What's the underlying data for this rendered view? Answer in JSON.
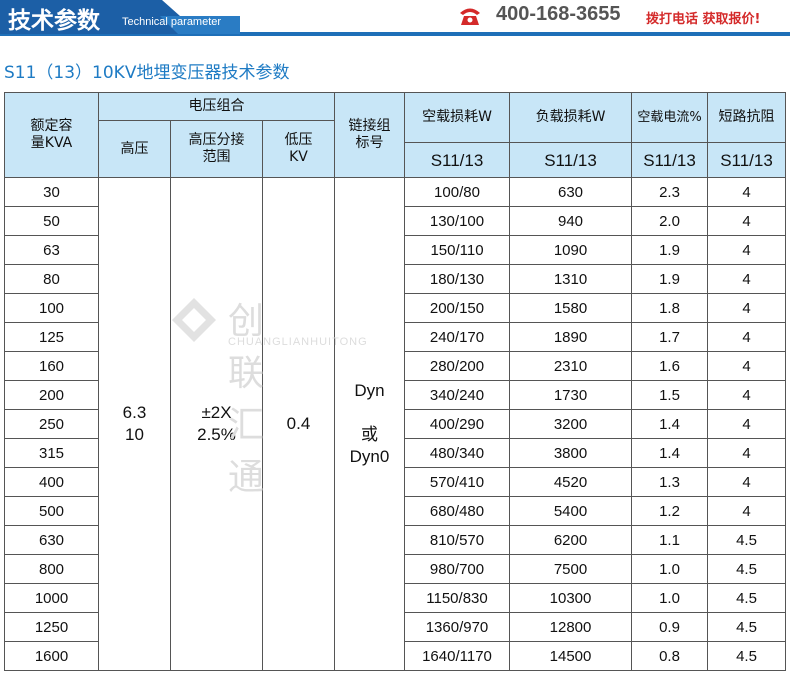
{
  "banner": {
    "title": "技术参数",
    "subtitle": "Technical parameter",
    "phone_icon": "phone-icon",
    "phone": "400-168-3655",
    "call_text": "拨打电话  获取报价!",
    "accent": "#1c5fa6",
    "red": "#d42a2a"
  },
  "page_title": "S11（13）10KV地埋变压器技术参数",
  "watermark": {
    "cn": "创联汇通",
    "en": "CHUANGLIANHUITONG"
  },
  "table": {
    "headers": {
      "capacity": "额定容量KVA",
      "voltage_group": "电压组合",
      "hv": "高压",
      "hv_tap": "高压分接范围",
      "lv": "低压KV",
      "connection": "链接组标号",
      "no_load_loss": "空载损耗W",
      "load_loss": "负载损耗W",
      "no_load_current": "空载电流%",
      "short_circuit": "短路抗阻",
      "model": "S11/13"
    },
    "merged": {
      "hv": "6.3\n10",
      "hv_tap": "±2X\n2.5%",
      "lv": "0.4",
      "connection": "Dyn\n\n或\nDyn0"
    },
    "rows": [
      [
        "30",
        "100/80",
        "630",
        "2.3",
        "4"
      ],
      [
        "50",
        "130/100",
        "940",
        "2.0",
        "4"
      ],
      [
        "63",
        "150/110",
        "1090",
        "1.9",
        "4"
      ],
      [
        "80",
        "180/130",
        "1310",
        "1.9",
        "4"
      ],
      [
        "100",
        "200/150",
        "1580",
        "1.8",
        "4"
      ],
      [
        "125",
        "240/170",
        "1890",
        "1.7",
        "4"
      ],
      [
        "160",
        "280/200",
        "2310",
        "1.6",
        "4"
      ],
      [
        "200",
        "340/240",
        "1730",
        "1.5",
        "4"
      ],
      [
        "250",
        "400/290",
        "3200",
        "1.4",
        "4"
      ],
      [
        "315",
        "480/340",
        "3800",
        "1.4",
        "4"
      ],
      [
        "400",
        "570/410",
        "4520",
        "1.3",
        "4"
      ],
      [
        "500",
        "680/480",
        "5400",
        "1.2",
        "4"
      ],
      [
        "630",
        "810/570",
        "6200",
        "1.1",
        "4.5"
      ],
      [
        "800",
        "980/700",
        "7500",
        "1.0",
        "4.5"
      ],
      [
        "1000",
        "1150/830",
        "10300",
        "1.0",
        "4.5"
      ],
      [
        "1250",
        "1360/970",
        "12800",
        "0.9",
        "4.5"
      ],
      [
        "1600",
        "1640/1170",
        "14500",
        "0.8",
        "4.5"
      ]
    ]
  }
}
